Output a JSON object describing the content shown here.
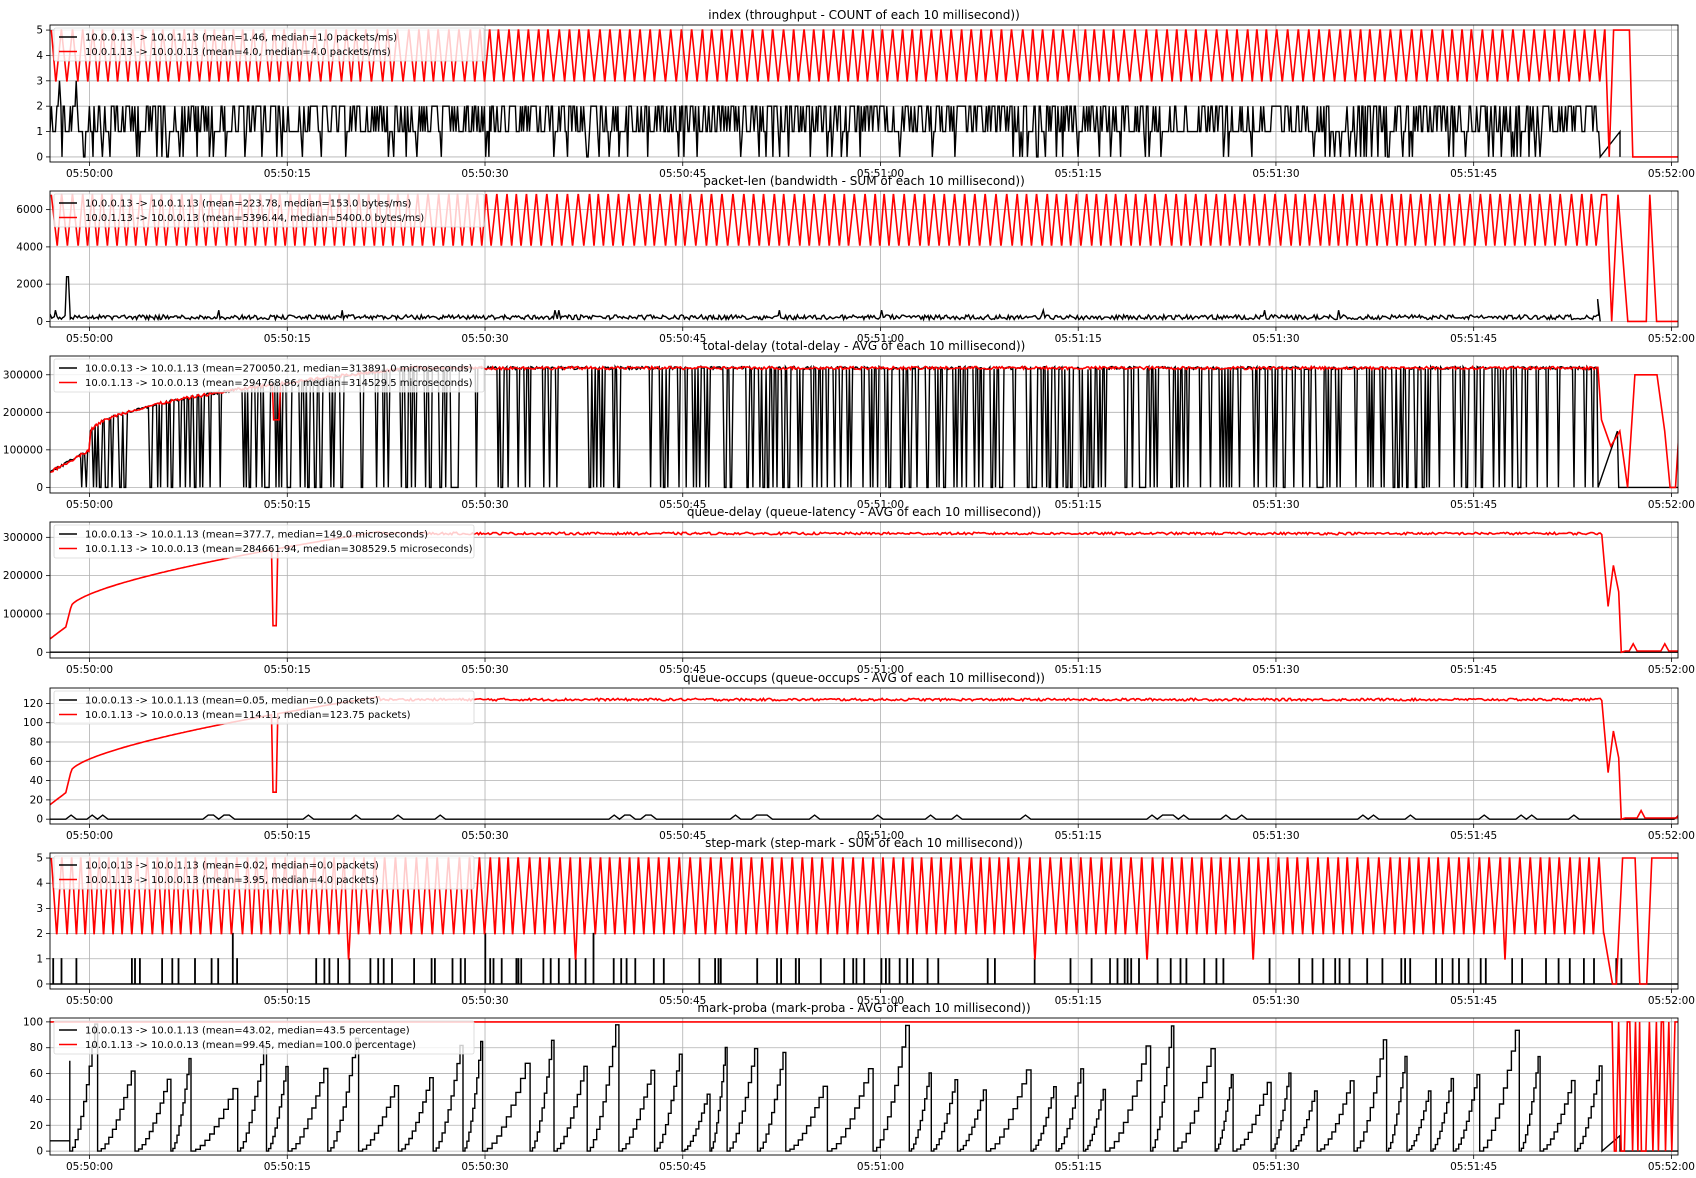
{
  "chart_data": [
    {
      "type": "line",
      "title": "index (throughput - COUNT of each 10 millisecond))",
      "xlabel": "",
      "ylabel": "",
      "ylim": [
        -0.2,
        5.2
      ],
      "yticks": [
        "0",
        "1",
        "2",
        "3",
        "4",
        "5"
      ],
      "ytick_values": [
        0,
        1,
        2,
        3,
        4,
        5
      ],
      "legend_position": "top-left",
      "series": [
        {
          "name": "10.0.0.13 -> 10.0.1.13 (mean=1.46, median=1.0 packets/ms)",
          "color": "#000000",
          "style": "count_black",
          "values": [
            2,
            1,
            2,
            1,
            2,
            1,
            2,
            1,
            2,
            1,
            2,
            1,
            0,
            1,
            2,
            1
          ]
        },
        {
          "name": "10.0.1.13 -> 10.0.0.13 (mean=4.0, median=4.0 packets/ms)",
          "color": "#ff0000",
          "style": "count_red",
          "values": [
            5,
            3,
            5,
            3,
            5,
            4,
            5,
            3,
            5,
            4,
            5,
            3
          ]
        }
      ]
    },
    {
      "type": "line",
      "title": "packet-len (bandwidth - SUM of each 10 millisecond))",
      "xlabel": "",
      "ylabel": "",
      "ylim": [
        -300,
        7000
      ],
      "yticks": [
        "0",
        "2000",
        "4000",
        "6000"
      ],
      "ytick_values": [
        0,
        2000,
        4000,
        6000
      ],
      "legend_position": "top-left",
      "series": [
        {
          "name": "10.0.0.13 -> 10.0.1.13 (mean=223.78, median=153.0 bytes/ms)",
          "color": "#000000",
          "style": "bw_black",
          "values": [
            300,
            150,
            400,
            200,
            350,
            150
          ]
        },
        {
          "name": "10.0.1.13 -> 10.0.0.13 (mean=5396.44, median=5400.0 bytes/ms)",
          "color": "#ff0000",
          "style": "bw_red",
          "values": [
            6800,
            4100,
            6800,
            4100,
            6800
          ]
        }
      ]
    },
    {
      "type": "line",
      "title": "total-delay (total-delay - AVG of each 10 millisecond))",
      "xlabel": "",
      "ylabel": "",
      "ylim": [
        -15000,
        350000
      ],
      "yticks": [
        "0",
        "100000",
        "200000",
        "300000"
      ],
      "ytick_values": [
        0,
        100000,
        200000,
        300000
      ],
      "legend_position": "top-left",
      "series": [
        {
          "name": "10.0.0.13 -> 10.0.1.13 (mean=270050.21, median=313891.0 microseconds)",
          "color": "#000000",
          "style": "delay_black",
          "values": [
            40000,
            140000,
            210000,
            260000,
            320000,
            320000,
            315000,
            320000
          ]
        },
        {
          "name": "10.0.1.13 -> 10.0.0.13 (mean=294768.86, median=314529.5 microseconds)",
          "color": "#ff0000",
          "style": "delay_red",
          "values": [
            40000,
            140000,
            210000,
            260000,
            325000,
            315000,
            318000,
            310000
          ]
        }
      ]
    },
    {
      "type": "line",
      "title": "queue-delay (queue-latency - AVG of each 10 millisecond))",
      "xlabel": "",
      "ylabel": "",
      "ylim": [
        -15000,
        340000
      ],
      "yticks": [
        "0",
        "100000",
        "200000",
        "300000"
      ],
      "ytick_values": [
        0,
        100000,
        200000,
        300000
      ],
      "legend_position": "top-left",
      "series": [
        {
          "name": "10.0.0.13 -> 10.0.1.13 (mean=377.7, median=149.0 microseconds)",
          "color": "#000000",
          "style": "flat_black",
          "values": [
            150,
            150
          ]
        },
        {
          "name": "10.0.1.13 -> 10.0.0.13 (mean=284661.94, median=308529.5 microseconds)",
          "color": "#ff0000",
          "style": "queue_red",
          "values": [
            35000,
            120000,
            200000,
            260000,
            315000,
            308000,
            310000,
            308000
          ]
        }
      ]
    },
    {
      "type": "line",
      "title": "queue-occups (queue-occups - AVG of each 10 millisecond))",
      "xlabel": "",
      "ylabel": "",
      "ylim": [
        -5,
        136
      ],
      "yticks": [
        "0",
        "20",
        "40",
        "60",
        "80",
        "100",
        "120"
      ],
      "ytick_values": [
        0,
        20,
        40,
        60,
        80,
        100,
        120
      ],
      "legend_position": "top-left",
      "series": [
        {
          "name": "10.0.0.13 -> 10.0.1.13 (mean=0.05, median=0.0 packets)",
          "color": "#000000",
          "style": "flat_black",
          "values": [
            0,
            0
          ]
        },
        {
          "name": "10.0.1.13 -> 10.0.0.13 (mean=114.11, median=123.75 packets)",
          "color": "#ff0000",
          "style": "queue_red",
          "values": [
            15,
            50,
            80,
            100,
            127,
            123,
            124,
            123
          ]
        }
      ]
    },
    {
      "type": "line",
      "title": "step-mark (step-mark - SUM of each 10 millisecond))",
      "xlabel": "",
      "ylabel": "",
      "ylim": [
        -0.2,
        5.2
      ],
      "yticks": [
        "0",
        "1",
        "2",
        "3",
        "4",
        "5"
      ],
      "ytick_values": [
        0,
        1,
        2,
        3,
        4,
        5
      ],
      "legend_position": "top-left",
      "series": [
        {
          "name": "10.0.0.13 -> 10.0.1.13 (mean=0.02, median=0.0 packets)",
          "color": "#000000",
          "style": "mark_black",
          "values": [
            0,
            1,
            0,
            1,
            2,
            0
          ]
        },
        {
          "name": "10.0.1.13 -> 10.0.0.13 (mean=3.95, median=4.0 packets)",
          "color": "#ff0000",
          "style": "mark_red",
          "values": [
            5,
            3,
            5,
            3,
            4,
            2
          ]
        }
      ]
    },
    {
      "type": "line",
      "title": "mark-proba (mark-proba - AVG of each 10 millisecond))",
      "xlabel": "",
      "ylabel": "",
      "ylim": [
        -3,
        103
      ],
      "yticks": [
        "0",
        "20",
        "40",
        "60",
        "80",
        "100"
      ],
      "ytick_values": [
        0,
        20,
        40,
        60,
        80,
        100
      ],
      "legend_position": "top-left",
      "series": [
        {
          "name": "10.0.0.13 -> 10.0.1.13 (mean=43.02, median=43.5 percentage)",
          "color": "#000000",
          "style": "proba_black",
          "values": [
            8,
            70,
            0,
            100,
            0,
            100,
            12
          ]
        },
        {
          "name": "10.0.1.13 -> 10.0.0.13 (mean=99.45, median=100.0 percentage)",
          "color": "#ff0000",
          "style": "proba_red",
          "values": [
            100,
            100,
            100,
            0,
            100
          ]
        }
      ]
    }
  ],
  "x_axis": {
    "ticks": [
      "05:50:00",
      "05:50:15",
      "05:50:30",
      "05:50:45",
      "05:51:00",
      "05:51:15",
      "05:51:30",
      "05:51:45",
      "05:52:00"
    ],
    "tick_seconds": [
      0,
      15,
      30,
      45,
      60,
      75,
      90,
      105,
      120
    ],
    "start_seconds": -3,
    "end_seconds": 120.5,
    "red_steady_end_seconds": 114.7,
    "black_end_seconds": 114.4
  },
  "grid": true
}
